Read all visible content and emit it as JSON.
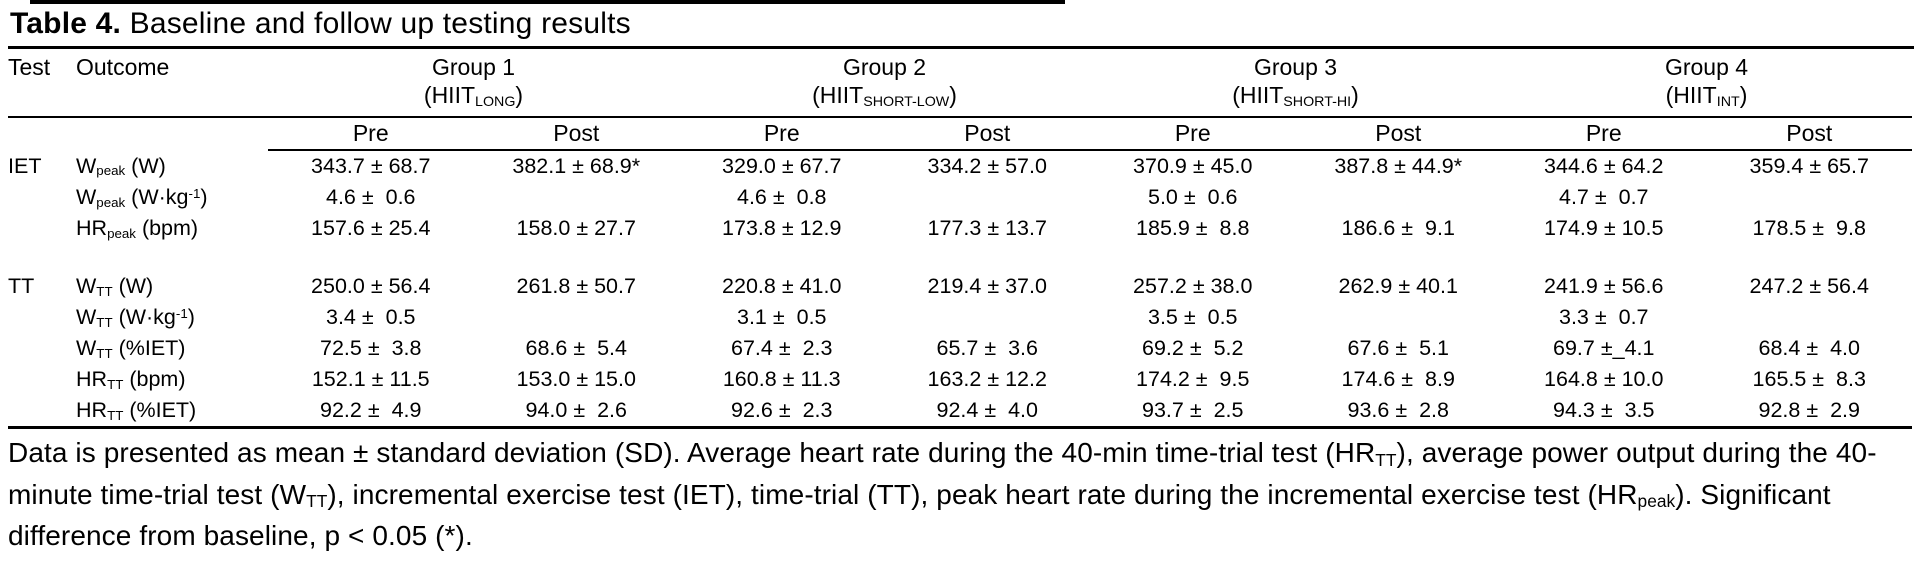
{
  "title": {
    "label": "Table 4.",
    "text": " Baseline and follow up testing results"
  },
  "header": {
    "test": "Test",
    "outcome": "Outcome",
    "pre": "Pre",
    "post": "Post"
  },
  "groups": [
    {
      "name": "Group 1",
      "abbr": [
        {
          "t": "(HIIT"
        },
        {
          "t": "LONG",
          "sub": true
        },
        {
          "t": ")"
        }
      ]
    },
    {
      "name": "Group 2",
      "abbr": [
        {
          "t": "(HIIT"
        },
        {
          "t": "SHORT-LOW",
          "sub": true
        },
        {
          "t": ")"
        }
      ]
    },
    {
      "name": "Group 3",
      "abbr": [
        {
          "t": "(HIIT"
        },
        {
          "t": "SHORT-HI",
          "sub": true
        },
        {
          "t": ")"
        }
      ]
    },
    {
      "name": "Group 4",
      "abbr": [
        {
          "t": "(HIIT"
        },
        {
          "t": "INT",
          "sub": true
        },
        {
          "t": ")"
        }
      ]
    }
  ],
  "rows": [
    {
      "test": "IET",
      "outcome": [
        {
          "t": "W"
        },
        {
          "t": "peak",
          "sub": true
        },
        {
          "t": " (W)"
        }
      ],
      "cells": [
        "343.7 ± 68.7",
        "382.1 ± 68.9*",
        "329.0 ± 67.7",
        "334.2 ± 57.0",
        "370.9 ± 45.0",
        "387.8 ± 44.9*",
        "344.6 ± 64.2",
        "359.4 ± 65.7"
      ]
    },
    {
      "test": "",
      "outcome": [
        {
          "t": "W"
        },
        {
          "t": "peak",
          "sub": true
        },
        {
          "t": " (W·kg"
        },
        {
          "t": "-1",
          "sup": true
        },
        {
          "t": ")"
        }
      ],
      "cells": [
        "4.6 ±  0.6",
        "",
        "4.6 ±  0.8",
        "",
        "5.0 ±  0.6",
        "",
        "4.7 ±  0.7",
        ""
      ]
    },
    {
      "test": "",
      "outcome": [
        {
          "t": "HR"
        },
        {
          "t": "peak",
          "sub": true
        },
        {
          "t": " (bpm)"
        }
      ],
      "cells": [
        "157.6 ± 25.4",
        "158.0 ± 27.7",
        "173.8 ± 12.9",
        "177.3 ± 13.7",
        "185.9 ±  8.8",
        "186.6 ±  9.1",
        "174.9 ± 10.5",
        "178.5 ±  9.8"
      ]
    },
    {
      "spacer": true
    },
    {
      "test": "TT",
      "outcome": [
        {
          "t": "W"
        },
        {
          "t": "TT",
          "sub": true
        },
        {
          "t": " (W)"
        }
      ],
      "cells": [
        "250.0 ± 56.4",
        "261.8 ± 50.7",
        "220.8 ± 41.0",
        "219.4 ± 37.0",
        "257.2 ± 38.0",
        "262.9 ± 40.1",
        "241.9 ± 56.6",
        "247.2 ± 56.4"
      ]
    },
    {
      "test": "",
      "outcome": [
        {
          "t": "W"
        },
        {
          "t": "TT",
          "sub": true
        },
        {
          "t": " (W·kg"
        },
        {
          "t": "-1",
          "sup": true
        },
        {
          "t": ")"
        }
      ],
      "cells": [
        "3.4 ±  0.5",
        "",
        "3.1 ±  0.5",
        "",
        "3.5 ±  0.5",
        "",
        "3.3 ±  0.7",
        ""
      ]
    },
    {
      "test": "",
      "outcome": [
        {
          "t": "W"
        },
        {
          "t": "TT",
          "sub": true
        },
        {
          "t": " (%IET)"
        }
      ],
      "cells": [
        "72.5 ±  3.8",
        "68.6 ±  5.4",
        "67.4 ±  2.3",
        "65.7 ±  3.6",
        "69.2 ±  5.2",
        "67.6 ±  5.1",
        "69.7 ±_4.1",
        "68.4 ±  4.0"
      ]
    },
    {
      "test": "",
      "outcome": [
        {
          "t": "HR"
        },
        {
          "t": "TT",
          "sub": true
        },
        {
          "t": " (bpm)"
        }
      ],
      "cells": [
        "152.1 ± 11.5",
        "153.0 ± 15.0",
        "160.8 ± 11.3",
        "163.2 ± 12.2",
        "174.2 ±  9.5",
        "174.6 ±  8.9",
        "164.8 ± 10.0",
        "165.5 ±  8.3"
      ]
    },
    {
      "test": "",
      "outcome": [
        {
          "t": "HR"
        },
        {
          "t": "TT",
          "sub": true
        },
        {
          "t": " (%IET)"
        }
      ],
      "cells": [
        "92.2 ±  4.9",
        "94.0 ±  2.6",
        "92.6 ±  2.3",
        "92.4 ±  4.0",
        "93.7 ±  2.5",
        "93.6 ±  2.8",
        "94.3 ±  3.5",
        "92.8 ±  2.9"
      ]
    }
  ],
  "footnote": [
    {
      "t": "Data is presented as mean ± standard deviation (SD). Average heart rate during the 40-min time-trial test (HR"
    },
    {
      "t": "TT",
      "sub": true
    },
    {
      "t": "), average power output during the 40-minute time-trial test (W"
    },
    {
      "t": "TT",
      "sub": true
    },
    {
      "t": "), incremental exercise test (IET), time-trial (TT), peak heart rate during the incremental exercise test (HR"
    },
    {
      "t": "peak",
      "sub": true
    },
    {
      "t": "). Significant difference from baseline, p < 0.05 (*)."
    }
  ],
  "colors": {
    "text": "#000000",
    "background": "#ffffff",
    "rule": "#000000"
  }
}
